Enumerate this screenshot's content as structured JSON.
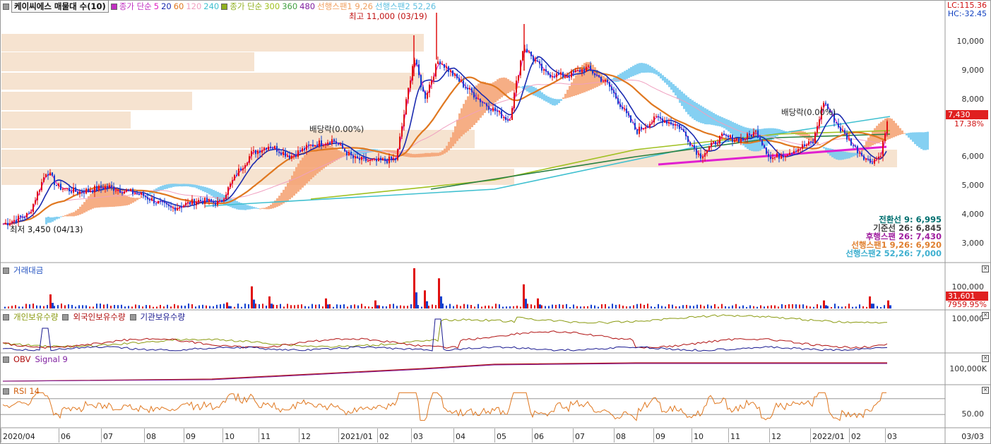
{
  "legend": {
    "symbol": "케이씨에스 매물대 수(10)",
    "ma_label": "종가 단순",
    "ma_short": [
      {
        "period": "5",
        "color": "#e020c0"
      },
      {
        "period": "20",
        "color": "#1a2ab0"
      },
      {
        "period": "60",
        "color": "#e07820"
      },
      {
        "period": "120",
        "color": "#f0a0c0"
      },
      {
        "period": "240",
        "color": "#40c0d0"
      }
    ],
    "ma_label2": "종가 단순",
    "ma_long": [
      {
        "period": "300",
        "color": "#a0c020"
      },
      {
        "period": "360",
        "color": "#40a040"
      },
      {
        "period": "480",
        "color": "#8020a0"
      }
    ],
    "span1": "선행스팬1 9,26",
    "span2": "선행스팬2 52,26"
  },
  "price_axis_right": {
    "lc": "LC:115.36",
    "hc": "HC:-32.45",
    "ticks": [
      "10,000",
      "9,000",
      "8,000",
      "7,000",
      "6,000",
      "5,000",
      "4,000",
      "3,000"
    ],
    "current_price": "7,430",
    "change_pct": "17.38%"
  },
  "annotations": {
    "high": "최고 11,000 (03/19)",
    "low": "최저 3,450 (04/13)",
    "dividend1": "배당락(0.00%)",
    "dividend2": "배당락(0.00%)"
  },
  "ichimoku": [
    {
      "label": "전환선 9: 6,995",
      "color": "#007070"
    },
    {
      "label": "기준선 26: 6,845",
      "color": "#444444"
    },
    {
      "label": "후행스팬 26: 7,430",
      "color": "#a020a0"
    },
    {
      "label": "선행스팬1 9,26: 6,920",
      "color": "#e08030"
    },
    {
      "label": "선행스팬2 52,26: 7,000",
      "color": "#40b0d0"
    }
  ],
  "volume_pane": {
    "title": "거래대금",
    "tick": "100,000",
    "current_value": "31,601",
    "pct": "7959.95%"
  },
  "holdings_pane": {
    "labels": [
      {
        "text": "개인보유수량",
        "color": "#8a9a10"
      },
      {
        "text": "외국인보유수량",
        "color": "#b01010"
      },
      {
        "text": "기관보유수량",
        "color": "#1a1a90"
      }
    ],
    "tick": "100,000"
  },
  "obv_pane": {
    "title": "OBV",
    "signal": "Signal 9",
    "tick": "100,000K"
  },
  "rsi_pane": {
    "title": "RSI 14",
    "tick": "50.00"
  },
  "x_axis": {
    "labels": [
      "2020/04",
      "06",
      "07",
      "08",
      "09",
      "10",
      "11",
      "12",
      "2021/01",
      "02",
      "03",
      "04",
      "05",
      "06",
      "07",
      "08",
      "09",
      "10",
      "11",
      "12",
      "2022/01",
      "02",
      "03"
    ],
    "right_label": "03/03"
  },
  "chart_data": {
    "type": "candlestick",
    "ylim": [
      2300,
      11300
    ],
    "close_anchors": [
      [
        0,
        3600
      ],
      [
        40,
        4000
      ],
      [
        65,
        5600
      ],
      [
        80,
        5000
      ],
      [
        110,
        4800
      ],
      [
        150,
        5000
      ],
      [
        200,
        4700
      ],
      [
        240,
        4200
      ],
      [
        280,
        4500
      ],
      [
        310,
        4400
      ],
      [
        335,
        5500
      ],
      [
        355,
        6200
      ],
      [
        380,
        6500
      ],
      [
        410,
        6100
      ],
      [
        440,
        6500
      ],
      [
        470,
        6700
      ],
      [
        500,
        6000
      ],
      [
        530,
        5900
      ],
      [
        560,
        6000
      ],
      [
        585,
        9700
      ],
      [
        600,
        8200
      ],
      [
        620,
        9600
      ],
      [
        650,
        8800
      ],
      [
        680,
        8100
      ],
      [
        720,
        7400
      ],
      [
        740,
        10100
      ],
      [
        770,
        9100
      ],
      [
        800,
        9000
      ],
      [
        830,
        9300
      ],
      [
        860,
        8700
      ],
      [
        900,
        7000
      ],
      [
        930,
        7500
      ],
      [
        960,
        7200
      ],
      [
        990,
        6100
      ],
      [
        1020,
        6800
      ],
      [
        1050,
        6700
      ],
      [
        1070,
        7000
      ],
      [
        1090,
        6000
      ],
      [
        1120,
        6300
      ],
      [
        1150,
        6600
      ],
      [
        1165,
        8100
      ],
      [
        1185,
        7200
      ],
      [
        1210,
        6400
      ],
      [
        1230,
        5900
      ],
      [
        1245,
        6100
      ],
      [
        1256,
        7430
      ]
    ],
    "volume_spikes": [
      [
        70,
        0.35
      ],
      [
        320,
        0.15
      ],
      [
        355,
        0.55
      ],
      [
        380,
        0.3
      ],
      [
        460,
        0.25
      ],
      [
        530,
        0.2
      ],
      [
        585,
        1.0
      ],
      [
        600,
        0.45
      ],
      [
        620,
        0.75
      ],
      [
        740,
        0.6
      ],
      [
        760,
        0.25
      ],
      [
        1165,
        0.2
      ],
      [
        1230,
        0.3
      ],
      [
        1256,
        0.2
      ]
    ],
    "volume_max": 150000,
    "rsi_levels": [
      70,
      30
    ]
  }
}
